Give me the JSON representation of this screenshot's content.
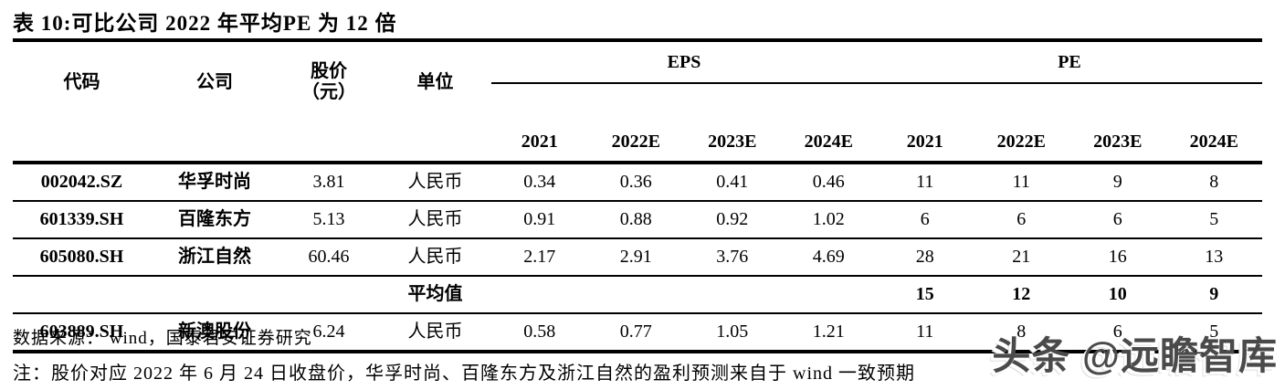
{
  "title": "表 10:可比公司 2022 年平均PE 为 12 倍",
  "table": {
    "col_headers": {
      "code": "代码",
      "company": "公司",
      "price_line1": "股价",
      "price_line2": "（元）",
      "unit": "单位",
      "eps_group": "EPS",
      "pe_group": "PE",
      "years": [
        "2021",
        "2022E",
        "2023E",
        "2024E"
      ]
    },
    "rows": [
      {
        "code": "002042.SZ",
        "company": "华孚时尚",
        "price": "3.81",
        "unit": "人民币",
        "eps": [
          "0.34",
          "0.36",
          "0.41",
          "0.46"
        ],
        "pe": [
          "11",
          "11",
          "9",
          "8"
        ]
      },
      {
        "code": "601339.SH",
        "company": "百隆东方",
        "price": "5.13",
        "unit": "人民币",
        "eps": [
          "0.91",
          "0.88",
          "0.92",
          "1.02"
        ],
        "pe": [
          "6",
          "6",
          "6",
          "5"
        ]
      },
      {
        "code": "605080.SH",
        "company": "浙江自然",
        "price": "60.46",
        "unit": "人民币",
        "eps": [
          "2.17",
          "2.91",
          "3.76",
          "4.69"
        ],
        "pe": [
          "28",
          "21",
          "16",
          "13"
        ]
      },
      {
        "code": "",
        "company": "",
        "price": "",
        "unit": "平均值",
        "eps": [
          "",
          "",
          "",
          ""
        ],
        "pe": [
          "15",
          "12",
          "10",
          "9"
        ]
      },
      {
        "code": "603889.SH",
        "company": "新澳股份",
        "price": "6.24",
        "unit": "人民币",
        "eps": [
          "0.58",
          "0.77",
          "1.05",
          "1.21"
        ],
        "pe": [
          "11",
          "8",
          "6",
          "5"
        ]
      }
    ]
  },
  "footer": {
    "source": "数据来源： wind，国泰君安证券研究",
    "note": "注：股价对应 2022 年 6 月 24 日收盘价，华孚时尚、百隆东方及浙江自然的盈利预测来自于 wind 一致预期",
    "watermark": "头条 @远瞻智库"
  },
  "colors": {
    "text": "#000000",
    "background": "#ffffff",
    "rule": "#000000",
    "watermark": "#4a4a4a"
  }
}
